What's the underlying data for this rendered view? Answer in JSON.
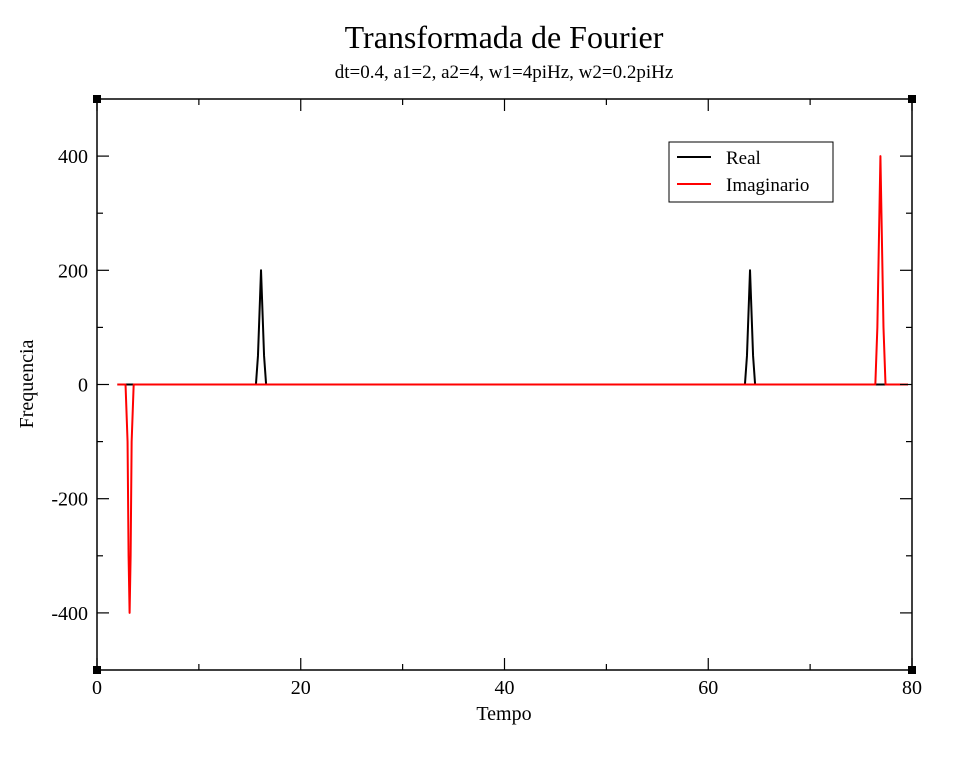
{
  "chart_data": {
    "type": "line",
    "title": "Transformada de Fourier",
    "subtitle": "dt=0.4, a1=2, a2=4, w1=4piHz, w2=0.2piHz",
    "xlabel": "Tempo",
    "ylabel": "Frequencia",
    "xlim": [
      0,
      80
    ],
    "ylim": [
      -500,
      500
    ],
    "x_ticks": [
      0,
      20,
      40,
      60,
      80
    ],
    "x_tick_labels": [
      "0",
      "20",
      "40",
      "60",
      "80"
    ],
    "y_ticks": [
      -400,
      -200,
      0,
      200,
      400
    ],
    "y_tick_labels": [
      "-400",
      "-200",
      "0",
      "200",
      "400"
    ],
    "grid": false,
    "legend_position": "top-right",
    "series": [
      {
        "name": "Real",
        "color": "#000000",
        "points": [
          [
            2.0,
            0
          ],
          [
            15.6,
            0
          ],
          [
            15.8,
            50
          ],
          [
            16.0,
            150
          ],
          [
            16.1,
            200
          ],
          [
            16.2,
            150
          ],
          [
            16.4,
            50
          ],
          [
            16.6,
            0
          ],
          [
            63.6,
            0
          ],
          [
            63.8,
            50
          ],
          [
            64.0,
            150
          ],
          [
            64.1,
            200
          ],
          [
            64.2,
            150
          ],
          [
            64.4,
            50
          ],
          [
            64.6,
            0
          ],
          [
            79.6,
            0
          ]
        ]
      },
      {
        "name": "Imaginario",
        "color": "#ff0000",
        "points": [
          [
            2.0,
            0
          ],
          [
            2.8,
            0
          ],
          [
            3.0,
            -100
          ],
          [
            3.1,
            -300
          ],
          [
            3.2,
            -400
          ],
          [
            3.3,
            -300
          ],
          [
            3.4,
            -100
          ],
          [
            3.6,
            0
          ],
          [
            76.4,
            0
          ],
          [
            76.6,
            100
          ],
          [
            76.8,
            300
          ],
          [
            76.9,
            400
          ],
          [
            77.0,
            300
          ],
          [
            77.2,
            100
          ],
          [
            77.4,
            0
          ],
          [
            79.6,
            0
          ]
        ]
      }
    ]
  }
}
